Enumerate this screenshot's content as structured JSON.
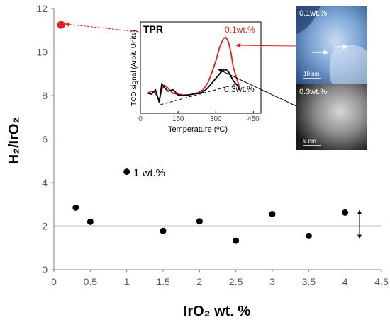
{
  "chart_data": [
    {
      "type": "scatter",
      "xlabel": "IrO₂ wt. %",
      "ylabel": "H₂/IrO₂",
      "xlim": [
        0,
        4.5
      ],
      "ylim": [
        0,
        12
      ],
      "xticks": [
        "0",
        "0.5",
        "1",
        "1.5",
        "2",
        "2.5",
        "3",
        "3.5",
        "4",
        "4.5"
      ],
      "yticks": [
        "0",
        "2",
        "4",
        "6",
        "8",
        "10",
        "12"
      ],
      "grid": false,
      "reference_line_y": 2,
      "series": [
        {
          "color": "#000000",
          "points": [
            {
              "x": 0.3,
              "y": 2.85
            },
            {
              "x": 0.5,
              "y": 2.2
            },
            {
              "x": 1.0,
              "y": 4.5
            },
            {
              "x": 1.5,
              "y": 1.78
            },
            {
              "x": 2.0,
              "y": 2.22
            },
            {
              "x": 2.5,
              "y": 1.33
            },
            {
              "x": 3.0,
              "y": 2.55
            },
            {
              "x": 3.5,
              "y": 1.55
            },
            {
              "x": 4.0,
              "y": 2.62
            }
          ]
        },
        {
          "color": "#e02020",
          "points": [
            {
              "x": 0.1,
              "y": 11.25
            }
          ]
        }
      ],
      "annotations": [
        {
          "text": "1 wt.%",
          "x": 1.0,
          "y": 4.5
        }
      ]
    },
    {
      "type": "line",
      "title": "TPR",
      "xlabel": "Temperature (ºC)",
      "ylabel": "TCD signal (Arbit. Units)",
      "xlim": [
        0,
        480
      ],
      "xticks": [
        "0",
        "150",
        "300",
        "450"
      ],
      "series": [
        {
          "name": "0.1wt.%",
          "color": "#e02020",
          "x": [
            30,
            45,
            60,
            75,
            85,
            95,
            110,
            130,
            150,
            170,
            190,
            210,
            230,
            250,
            270,
            285,
            300,
            315,
            330,
            340,
            350,
            360,
            370,
            385,
            395
          ],
          "y": [
            0.18,
            0.2,
            0.17,
            0.08,
            0.22,
            0.28,
            0.24,
            0.17,
            0.16,
            0.15,
            0.15,
            0.16,
            0.18,
            0.22,
            0.32,
            0.45,
            0.6,
            0.78,
            0.9,
            0.92,
            0.86,
            0.72,
            0.52,
            0.35,
            0.25
          ]
        },
        {
          "name": "0.3wt.%",
          "color": "#000000",
          "x": [
            30,
            45,
            60,
            75,
            85,
            95,
            110,
            130,
            150,
            170,
            190,
            210,
            230,
            250,
            270,
            285,
            300,
            315,
            330,
            340,
            350,
            360,
            370,
            385,
            395
          ],
          "y": [
            0.17,
            0.16,
            0.22,
            0.05,
            0.3,
            0.25,
            0.2,
            0.22,
            0.15,
            0.14,
            0.15,
            0.16,
            0.17,
            0.19,
            0.25,
            0.31,
            0.37,
            0.43,
            0.48,
            0.49,
            0.46,
            0.4,
            0.34,
            0.28,
            0.22
          ]
        }
      ],
      "baseline": {
        "x": [
          80,
          390
        ],
        "y": [
          0.02,
          0.3
        ]
      }
    }
  ],
  "images": [
    {
      "label": "0.1wt.%",
      "scale_label": "10 nm"
    },
    {
      "label": "0.3wt.%",
      "scale_label": "5 nm"
    }
  ]
}
